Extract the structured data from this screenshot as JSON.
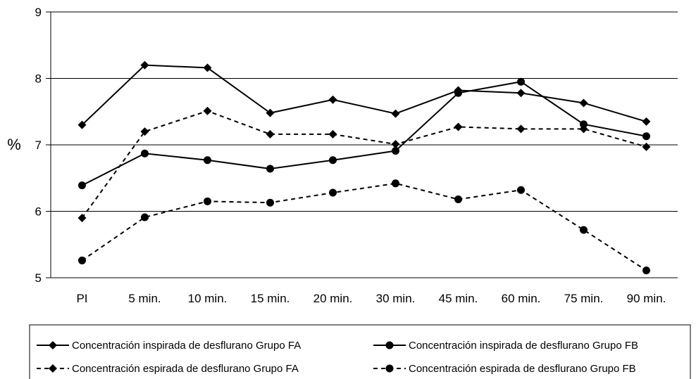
{
  "chart_data": {
    "type": "line",
    "categories": [
      "PI",
      "5 min.",
      "10 min.",
      "15 min.",
      "20 min.",
      "30 min.",
      "45 min.",
      "60 min.",
      "75 min.",
      "90 min."
    ],
    "ylabel": "%",
    "ylim": [
      5,
      9
    ],
    "yticks": [
      5,
      6,
      7,
      8,
      9
    ],
    "grid": true,
    "legend_position": "bottom",
    "series": [
      {
        "name": "Concentración inspirada de desflurano Grupo FA",
        "marker": "diamond",
        "line": "solid",
        "values": [
          7.3,
          8.2,
          8.16,
          7.48,
          7.68,
          7.47,
          7.82,
          7.78,
          7.63,
          7.35
        ]
      },
      {
        "name": "Concentración inspirada de desflurano Grupo FB",
        "marker": "circle",
        "line": "solid",
        "values": [
          6.39,
          6.87,
          6.77,
          6.64,
          6.77,
          6.91,
          7.78,
          7.95,
          7.31,
          7.13
        ]
      },
      {
        "name": "Concentración espirada de desflurano Grupo FA",
        "marker": "diamond",
        "line": "dashed",
        "values": [
          5.9,
          7.2,
          7.51,
          7.16,
          7.16,
          7.01,
          7.27,
          7.24,
          7.24,
          6.97
        ]
      },
      {
        "name": "Concentración espirada de desflurano Grupo FB",
        "marker": "circle",
        "line": "dashed",
        "values": [
          5.26,
          5.91,
          6.15,
          6.13,
          6.28,
          6.42,
          6.18,
          6.32,
          5.72,
          5.11
        ]
      }
    ]
  }
}
